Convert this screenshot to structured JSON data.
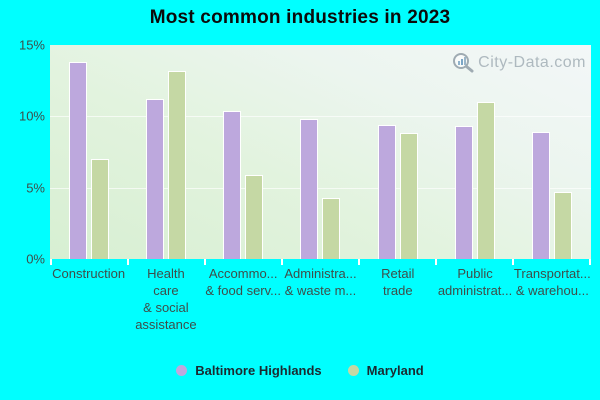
{
  "title": "Most common industries in 2023",
  "watermark": {
    "text": "City-Data.com",
    "icon": "magnifier-barchart-icon"
  },
  "colors": {
    "background": "#00ffff",
    "baltimore_highlands": "#bda8dd",
    "maryland": "#c5d8a4",
    "bar_border": "#ffffff",
    "axis_text": "#3e4e4a",
    "legend_text": "#1b2a31",
    "watermark_text": "#aeb9bf",
    "title_text": "#0b0b0b"
  },
  "chart_data": {
    "type": "bar",
    "title": "Most common industries in 2023",
    "categories": [
      "Construction",
      "Health care & social assistance",
      "Accommo... & food serv...",
      "Administra... & waste m...",
      "Retail trade",
      "Public administrat...",
      "Transportat... & warehou..."
    ],
    "category_label_lines": [
      [
        "Construction"
      ],
      [
        "Health",
        "care",
        "& social",
        "assistance"
      ],
      [
        "Accommo...",
        "& food serv..."
      ],
      [
        "Administra...",
        "& waste m..."
      ],
      [
        "Retail",
        "trade"
      ],
      [
        "Public",
        "administrat..."
      ],
      [
        "Transportat...",
        "& warehou..."
      ]
    ],
    "series": [
      {
        "name": "Baltimore Highlands",
        "color": "#bda8dd",
        "values": [
          13.8,
          11.2,
          10.4,
          9.8,
          9.4,
          9.3,
          8.9
        ]
      },
      {
        "name": "Maryland",
        "color": "#c5d8a4",
        "values": [
          7.0,
          13.2,
          5.9,
          4.3,
          8.8,
          11.0,
          4.7
        ]
      }
    ],
    "xlabel": "",
    "ylabel": "",
    "ylim": [
      0,
      15
    ],
    "yticks": [
      {
        "value": 0,
        "label": "0%"
      },
      {
        "value": 5,
        "label": "5%"
      },
      {
        "value": 10,
        "label": "10%"
      },
      {
        "value": 15,
        "label": "15%"
      }
    ],
    "grid": true,
    "legend_position": "bottom-center"
  },
  "legend": {
    "items": [
      {
        "label": "Baltimore Highlands",
        "color": "#bda8dd"
      },
      {
        "label": "Maryland",
        "color": "#c5d8a4"
      }
    ]
  }
}
